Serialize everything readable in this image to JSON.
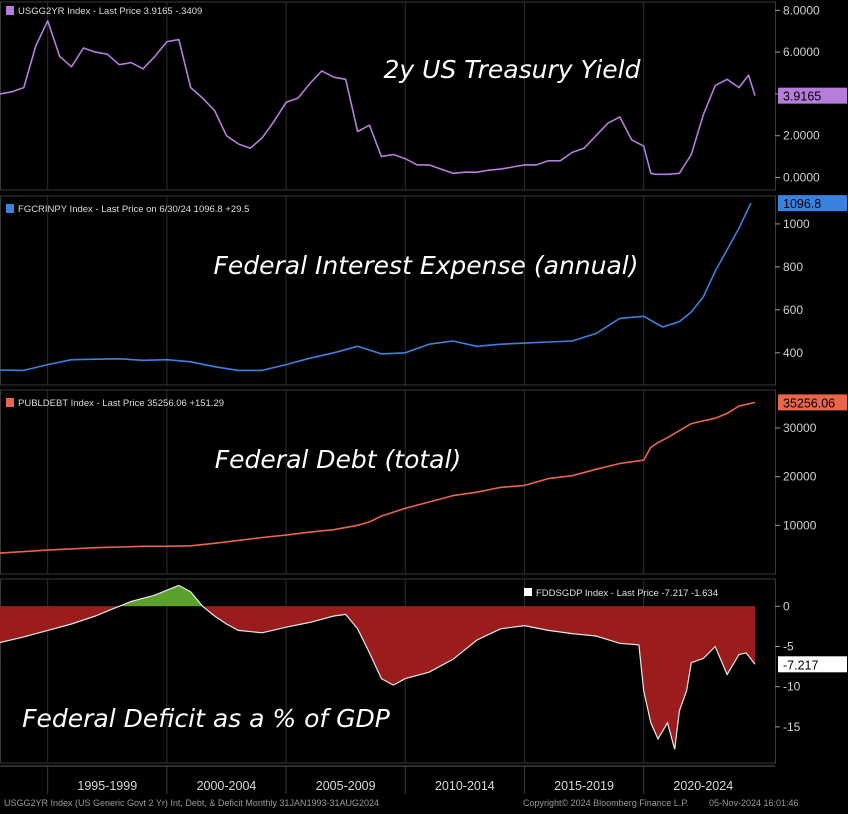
{
  "footer": {
    "source": "USGG2YR Index (US Generic Govt 2 Yr) Int, Debt, & Deficit  Monthly 31JAN1993-31AUG2024",
    "copyright": "Copyright© 2024 Bloomberg Finance L.P.",
    "timestamp": "05-Nov-2024 16:01:46"
  },
  "x_axis": {
    "domain": [
      1993.0,
      2024.67
    ],
    "labels": [
      "1995-1999",
      "2000-2004",
      "2005-2009",
      "2010-2014",
      "2015-2019",
      "2020-2024"
    ],
    "label_centers": [
      1997.5,
      2002.5,
      2007.5,
      2012.5,
      2017.5,
      2022.5
    ],
    "dividers": [
      1995,
      2000,
      2005,
      2010,
      2015,
      2020
    ]
  },
  "chart_data": [
    {
      "type": "line",
      "ticker": "USGG2YR Index",
      "legend_text": "USGG2YR Index - Last Price 3.9165  -.3409",
      "title": "2y US Treasury Yield",
      "color": "#b67ddb",
      "last_label": "3.9165",
      "ylim": [
        -0.6,
        8.4
      ],
      "yticks": [
        0,
        2,
        4,
        6,
        8
      ],
      "ytick_labels": [
        "0.0000",
        "2.0000",
        "4.0000",
        "6.0000",
        "8.0000"
      ],
      "x": [
        1993.0,
        1993.5,
        1994.0,
        1994.5,
        1995.0,
        1995.5,
        1996.0,
        1996.5,
        1997.0,
        1997.5,
        1998.0,
        1998.5,
        1999.0,
        1999.5,
        2000.0,
        2000.5,
        2001.0,
        2001.5,
        2002.0,
        2002.5,
        2003.0,
        2003.5,
        2004.0,
        2004.5,
        2005.0,
        2005.5,
        2006.0,
        2006.5,
        2007.0,
        2007.5,
        2008.0,
        2008.5,
        2009.0,
        2009.5,
        2010.0,
        2010.5,
        2011.0,
        2011.5,
        2012.0,
        2012.5,
        2013.0,
        2013.5,
        2014.0,
        2014.5,
        2015.0,
        2015.5,
        2016.0,
        2016.5,
        2017.0,
        2017.5,
        2018.0,
        2018.5,
        2019.0,
        2019.5,
        2020.0,
        2020.3,
        2020.5,
        2021.0,
        2021.5,
        2022.0,
        2022.5,
        2023.0,
        2023.5,
        2024.0,
        2024.4,
        2024.67
      ],
      "values": [
        4.0,
        4.1,
        4.3,
        6.3,
        7.5,
        5.8,
        5.3,
        6.2,
        6.0,
        5.9,
        5.4,
        5.5,
        5.2,
        5.8,
        6.5,
        6.6,
        4.3,
        3.8,
        3.2,
        2.0,
        1.6,
        1.4,
        1.9,
        2.7,
        3.6,
        3.8,
        4.5,
        5.1,
        4.8,
        4.7,
        2.2,
        2.5,
        1.0,
        1.1,
        0.9,
        0.6,
        0.6,
        0.4,
        0.2,
        0.25,
        0.25,
        0.35,
        0.4,
        0.5,
        0.6,
        0.6,
        0.8,
        0.8,
        1.2,
        1.4,
        2.0,
        2.6,
        2.9,
        1.8,
        1.5,
        0.2,
        0.15,
        0.15,
        0.2,
        1.1,
        3.0,
        4.4,
        4.7,
        4.3,
        4.9,
        3.9165
      ]
    },
    {
      "type": "line",
      "ticker": "FGCRINPY Index",
      "legend_text": "FGCRINPY Index - Last Price on 6/30/24  1096.8  +29.5",
      "title": "Federal Interest Expense (annual)",
      "color": "#3b82e0",
      "last_label": "1096.8",
      "ylim": [
        250,
        1130
      ],
      "yticks": [
        400,
        600,
        800,
        1000
      ],
      "ytick_labels": [
        "400",
        "600",
        "800",
        "1000"
      ],
      "x": [
        1993.0,
        1994.0,
        1995.0,
        1996.0,
        1997.0,
        1998.0,
        1999.0,
        2000.0,
        2001.0,
        2002.0,
        2003.0,
        2004.0,
        2005.0,
        2006.0,
        2007.0,
        2008.0,
        2009.0,
        2010.0,
        2011.0,
        2012.0,
        2013.0,
        2014.0,
        2015.0,
        2016.0,
        2017.0,
        2018.0,
        2019.0,
        2020.0,
        2020.8,
        2021.5,
        2022.0,
        2022.5,
        2023.0,
        2023.5,
        2024.0,
        2024.5
      ],
      "values": [
        320,
        318,
        345,
        368,
        370,
        372,
        365,
        368,
        358,
        335,
        318,
        318,
        345,
        375,
        400,
        430,
        395,
        400,
        440,
        455,
        430,
        440,
        445,
        450,
        455,
        490,
        560,
        570,
        520,
        545,
        590,
        660,
        780,
        880,
        980,
        1096.8
      ]
    },
    {
      "type": "line",
      "ticker": "PUBLDEBT Index",
      "legend_text": "PUBLDEBT Index - Last Price 35256.06  +151.29",
      "title": "Federal Debt (total)",
      "color": "#e8664a",
      "last_label": "35256.06",
      "ylim": [
        0,
        37800
      ],
      "yticks": [
        10000,
        20000,
        30000
      ],
      "ytick_labels": [
        "10000",
        "20000",
        "30000"
      ],
      "x": [
        1993.0,
        1995.0,
        1997.0,
        1999.0,
        2000.0,
        2001.0,
        2002.0,
        2003.0,
        2004.0,
        2005.0,
        2006.0,
        2007.0,
        2008.0,
        2008.5,
        2009.0,
        2010.0,
        2011.0,
        2012.0,
        2013.0,
        2014.0,
        2015.0,
        2016.0,
        2017.0,
        2018.0,
        2019.0,
        2020.0,
        2020.3,
        2020.6,
        2021.0,
        2022.0,
        2023.0,
        2023.5,
        2024.0,
        2024.67
      ],
      "values": [
        4300,
        4900,
        5400,
        5700,
        5700,
        5800,
        6300,
        6900,
        7500,
        8000,
        8600,
        9100,
        10000,
        10700,
        11900,
        13500,
        14800,
        16100,
        16800,
        17800,
        18200,
        19600,
        20200,
        21500,
        22700,
        23400,
        26000,
        27000,
        28000,
        30900,
        32000,
        33000,
        34500,
        35256.06
      ]
    },
    {
      "type": "area",
      "ticker": "FDDSGDP Index",
      "legend_text": "FDDSGDP Index - Last Price -7.217  -1.634",
      "title": "Federal Deficit as a % of GDP",
      "color_positive": "#5aa02c",
      "color_negative": "#9a1c1c",
      "line_color": "#e8e8e8",
      "last_label": "-7.217",
      "ylim": [
        -19.5,
        3.4
      ],
      "yticks": [
        0,
        -5,
        -10,
        -15
      ],
      "ytick_labels": [
        "0",
        "-5",
        "-10",
        "-15"
      ],
      "x": [
        1993.0,
        1994.0,
        1995.0,
        1996.0,
        1997.0,
        1997.5,
        1998.0,
        1998.5,
        1999.0,
        1999.5,
        2000.0,
        2000.5,
        2001.0,
        2001.5,
        2002.0,
        2002.5,
        2003.0,
        2004.0,
        2005.0,
        2006.0,
        2007.0,
        2007.5,
        2008.0,
        2008.5,
        2009.0,
        2009.5,
        2010.0,
        2011.0,
        2012.0,
        2013.0,
        2014.0,
        2015.0,
        2016.0,
        2017.0,
        2018.0,
        2019.0,
        2019.8,
        2020.0,
        2020.3,
        2020.6,
        2021.0,
        2021.3,
        2021.5,
        2021.8,
        2022.0,
        2022.5,
        2023.0,
        2023.5,
        2024.0,
        2024.3,
        2024.67
      ],
      "values": [
        -4.5,
        -3.8,
        -3.0,
        -2.2,
        -1.2,
        -0.6,
        0.0,
        0.6,
        1.0,
        1.4,
        2.0,
        2.6,
        1.8,
        0.0,
        -1.2,
        -2.2,
        -3.0,
        -3.3,
        -2.6,
        -2.0,
        -1.2,
        -1.0,
        -2.8,
        -5.8,
        -9.0,
        -9.8,
        -9.0,
        -8.2,
        -6.6,
        -4.2,
        -2.8,
        -2.4,
        -3.0,
        -3.4,
        -3.7,
        -4.6,
        -4.8,
        -10.5,
        -14.5,
        -16.5,
        -14.5,
        -17.8,
        -13.0,
        -10.5,
        -7.0,
        -6.5,
        -5.0,
        -8.5,
        -6.0,
        -5.8,
        -7.217
      ]
    }
  ]
}
